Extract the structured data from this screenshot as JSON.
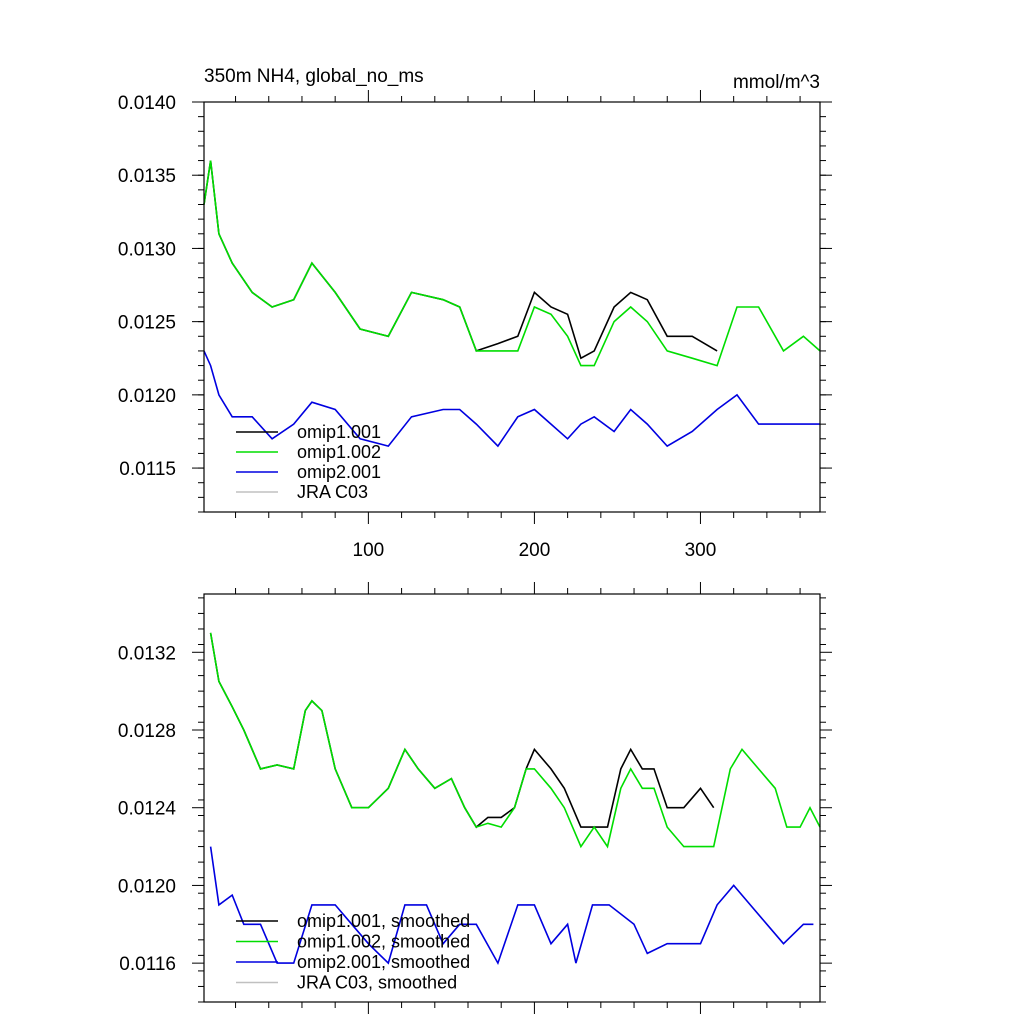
{
  "colors": {
    "omip1_001": "#000000",
    "omip1_002": "#00dd00",
    "omip2_001": "#0000e0",
    "jra_c03": "#c0c0c0"
  },
  "chart_data": [
    {
      "type": "line",
      "title": "350m NH4, global_no_ms",
      "units": "mmol/m^3",
      "xlim": [
        1,
        372
      ],
      "ylim": [
        0.0112,
        0.014
      ],
      "x_ticks": [
        100,
        200,
        300
      ],
      "x_tick_labels": [
        "100",
        "200",
        "300"
      ],
      "y_ticks": [
        0.014,
        0.0135,
        0.013,
        0.0125,
        0.012,
        0.0115
      ],
      "y_tick_labels": [
        "0.0140",
        "0.0135",
        "0.0130",
        "0.0125",
        "0.0120",
        "0.0115"
      ],
      "legend_position": "bottom-left",
      "grid": false,
      "series": [
        {
          "name": "omip1.001",
          "color_key": "omip1_001",
          "x": [
            1,
            5,
            10,
            18,
            30,
            42,
            55,
            66,
            80,
            95,
            112,
            126,
            145,
            155,
            165,
            178,
            190,
            200,
            210,
            220,
            228,
            236,
            248,
            258,
            268,
            280,
            295,
            310
          ],
          "y": [
            0.0133,
            0.0136,
            0.0131,
            0.0129,
            0.0127,
            0.0126,
            0.01265,
            0.0129,
            0.0127,
            0.01245,
            0.0124,
            0.0127,
            0.01265,
            0.0126,
            0.0123,
            0.01235,
            0.0124,
            0.0127,
            0.0126,
            0.01255,
            0.01225,
            0.0123,
            0.0126,
            0.0127,
            0.01265,
            0.0124,
            0.0124,
            0.0123
          ]
        },
        {
          "name": "omip1.002",
          "color_key": "omip1_002",
          "x": [
            1,
            5,
            10,
            18,
            30,
            42,
            55,
            66,
            80,
            95,
            112,
            126,
            145,
            155,
            165,
            178,
            190,
            200,
            210,
            220,
            228,
            236,
            248,
            258,
            268,
            280,
            295,
            310,
            322,
            335,
            350,
            362,
            372
          ],
          "y": [
            0.0133,
            0.0136,
            0.0131,
            0.0129,
            0.0127,
            0.0126,
            0.01265,
            0.0129,
            0.0127,
            0.01245,
            0.0124,
            0.0127,
            0.01265,
            0.0126,
            0.0123,
            0.0123,
            0.0123,
            0.0126,
            0.01255,
            0.0124,
            0.0122,
            0.0122,
            0.0125,
            0.0126,
            0.0125,
            0.0123,
            0.01225,
            0.0122,
            0.0126,
            0.0126,
            0.0123,
            0.0124,
            0.0123
          ]
        },
        {
          "name": "omip2.001",
          "color_key": "omip2_001",
          "x": [
            1,
            5,
            10,
            18,
            30,
            42,
            55,
            66,
            80,
            95,
            112,
            126,
            145,
            155,
            165,
            178,
            190,
            200,
            210,
            220,
            228,
            236,
            248,
            258,
            268,
            280,
            295,
            310,
            322,
            335,
            350,
            362,
            372
          ],
          "y": [
            0.0123,
            0.0122,
            0.012,
            0.01185,
            0.01185,
            0.0117,
            0.0118,
            0.01195,
            0.0119,
            0.0117,
            0.01165,
            0.01185,
            0.0119,
            0.0119,
            0.0118,
            0.01165,
            0.01185,
            0.0119,
            0.0118,
            0.0117,
            0.0118,
            0.01185,
            0.01175,
            0.0119,
            0.0118,
            0.01165,
            0.01175,
            0.0119,
            0.012,
            0.0118,
            0.0118,
            0.0118,
            0.0118
          ]
        },
        {
          "name": "JRA C03",
          "color_key": "jra_c03",
          "x": [],
          "y": []
        }
      ]
    },
    {
      "type": "line",
      "xlim": [
        1,
        372
      ],
      "ylim": [
        0.0114,
        0.0135
      ],
      "x_ticks": [
        100,
        200,
        300
      ],
      "y_ticks": [
        0.0132,
        0.0128,
        0.0124,
        0.012,
        0.0116
      ],
      "y_tick_labels": [
        "0.0132",
        "0.0128",
        "0.0124",
        "0.0120",
        "0.0116"
      ],
      "legend_position": "bottom-left",
      "grid": false,
      "series": [
        {
          "name": "omip1.001, smoothed",
          "color_key": "omip1_001",
          "x": [
            5,
            10,
            18,
            25,
            35,
            45,
            55,
            62,
            66,
            72,
            80,
            90,
            100,
            112,
            122,
            130,
            140,
            150,
            158,
            165,
            172,
            180,
            188,
            195,
            200,
            210,
            218,
            228,
            236,
            244,
            252,
            258,
            265,
            272,
            280,
            290,
            300,
            308
          ],
          "y": [
            0.0133,
            0.01305,
            0.01292,
            0.0128,
            0.0126,
            0.01262,
            0.0126,
            0.0129,
            0.01295,
            0.0129,
            0.0126,
            0.0124,
            0.0124,
            0.0125,
            0.0127,
            0.0126,
            0.0125,
            0.01255,
            0.0124,
            0.0123,
            0.01235,
            0.01235,
            0.0124,
            0.0126,
            0.0127,
            0.0126,
            0.0125,
            0.0123,
            0.0123,
            0.0123,
            0.0126,
            0.0127,
            0.0126,
            0.0126,
            0.0124,
            0.0124,
            0.0125,
            0.0124
          ]
        },
        {
          "name": "omip1.002, smoothed",
          "color_key": "omip1_002",
          "x": [
            5,
            10,
            18,
            25,
            35,
            45,
            55,
            62,
            66,
            72,
            80,
            90,
            100,
            112,
            122,
            130,
            140,
            150,
            158,
            165,
            172,
            180,
            188,
            195,
            200,
            210,
            218,
            228,
            236,
            244,
            252,
            258,
            265,
            272,
            280,
            290,
            300,
            308,
            318,
            325,
            335,
            345,
            352,
            360,
            366,
            372
          ],
          "y": [
            0.0133,
            0.01305,
            0.01292,
            0.0128,
            0.0126,
            0.01262,
            0.0126,
            0.0129,
            0.01295,
            0.0129,
            0.0126,
            0.0124,
            0.0124,
            0.0125,
            0.0127,
            0.0126,
            0.0125,
            0.01255,
            0.0124,
            0.0123,
            0.01232,
            0.0123,
            0.0124,
            0.0126,
            0.0126,
            0.0125,
            0.0124,
            0.0122,
            0.0123,
            0.0122,
            0.0125,
            0.0126,
            0.0125,
            0.0125,
            0.0123,
            0.0122,
            0.0122,
            0.0122,
            0.0126,
            0.0127,
            0.0126,
            0.0125,
            0.0123,
            0.0123,
            0.0124,
            0.0123
          ]
        },
        {
          "name": "omip2.001, smoothed",
          "color_key": "omip2_001",
          "x": [
            5,
            10,
            18,
            25,
            35,
            45,
            55,
            66,
            80,
            90,
            100,
            112,
            122,
            135,
            145,
            155,
            165,
            178,
            190,
            200,
            210,
            220,
            225,
            235,
            245,
            260,
            268,
            280,
            290,
            300,
            310,
            320,
            330,
            340,
            350,
            362,
            368
          ],
          "y": [
            0.0122,
            0.0119,
            0.01195,
            0.0118,
            0.0118,
            0.0116,
            0.0116,
            0.0119,
            0.0119,
            0.0118,
            0.0117,
            0.0116,
            0.0119,
            0.0119,
            0.0117,
            0.0118,
            0.0118,
            0.0116,
            0.0119,
            0.0119,
            0.0117,
            0.0118,
            0.0116,
            0.0119,
            0.0119,
            0.0118,
            0.01165,
            0.0117,
            0.0117,
            0.0117,
            0.0119,
            0.012,
            0.0119,
            0.0118,
            0.0117,
            0.0118,
            0.0118
          ]
        },
        {
          "name": "JRA C03, smoothed",
          "color_key": "jra_c03",
          "x": [],
          "y": []
        }
      ]
    }
  ]
}
